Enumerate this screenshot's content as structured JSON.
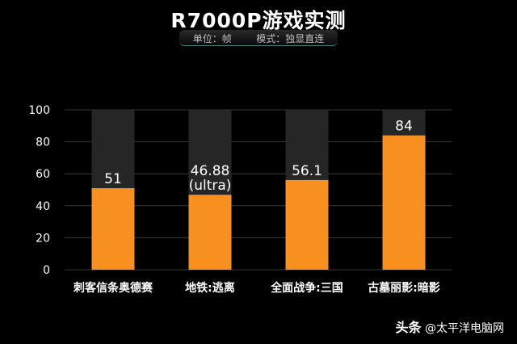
{
  "chart_data": {
    "type": "bar",
    "title": "R7000P游戏实测",
    "subtitle": "单位：帧        模式：独显直连",
    "categories": [
      "刺客信条奥德赛",
      "地铁:逃离",
      "全面战争:三国",
      "古墓丽影:暗影"
    ],
    "values": [
      51,
      46.88,
      56.1,
      84
    ],
    "data_labels": [
      [
        "51"
      ],
      [
        "46.88",
        "(ultra)"
      ],
      [
        "56.1"
      ],
      [
        "84"
      ]
    ],
    "yticks": [
      "0",
      "20",
      "40",
      "60",
      "80",
      "100"
    ],
    "ylim": [
      0,
      100
    ],
    "grid": true,
    "bar_color": "#f7901e",
    "background_bar_color": "#262626",
    "background_color": "#000000"
  },
  "watermark": {
    "brand": "头条",
    "handle": "@太平洋电脑网"
  }
}
